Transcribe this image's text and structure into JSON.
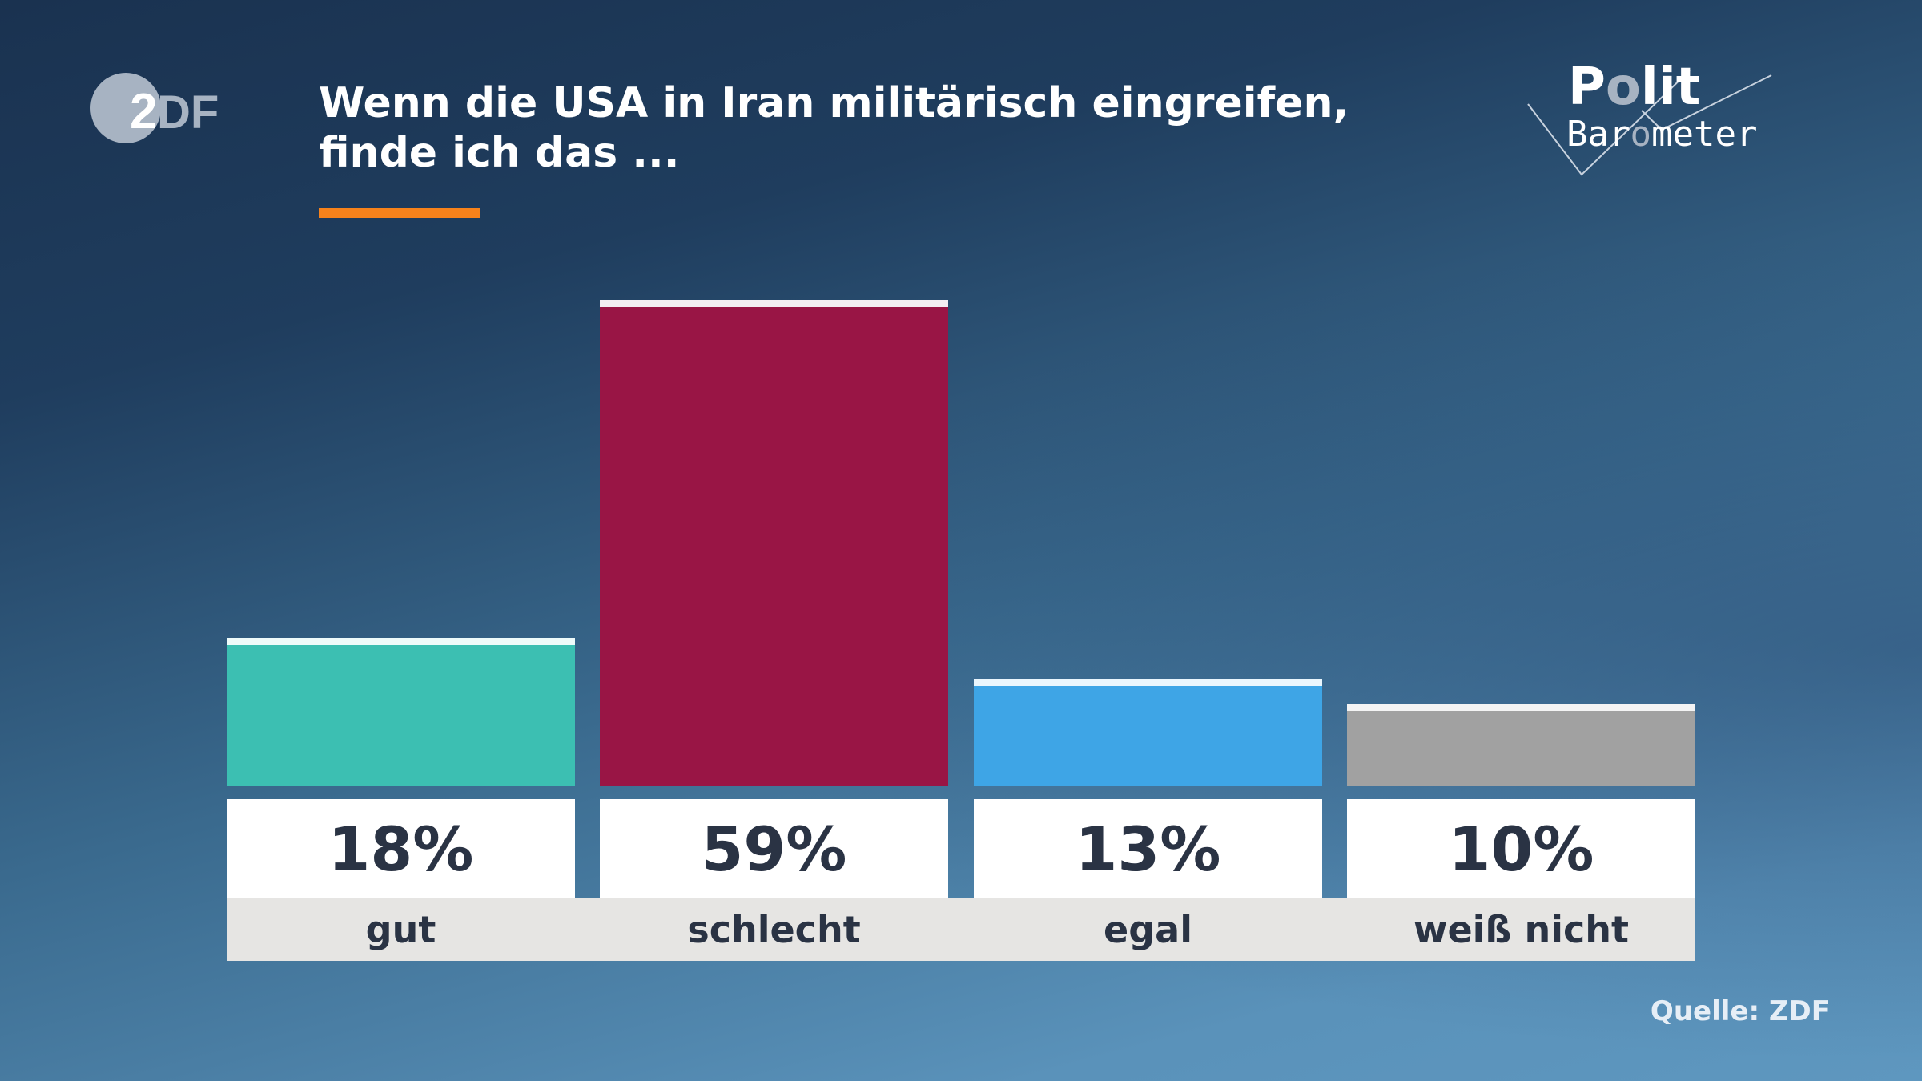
{
  "header": {
    "title": "Wenn die USA in Iran militärisch eingreifen, finde ich das ...",
    "logo_left": "ZDF",
    "logo_right": "Polit Barometer"
  },
  "colors": {
    "accent": "#f7821b",
    "gut": "#3cbfb2",
    "schlecht": "#991545",
    "egal": "#3ea5e6",
    "weiss_nicht": "#a1a1a1"
  },
  "chart_data": {
    "type": "bar",
    "title": "Wenn die USA in Iran militärisch eingreifen, finde ich das ...",
    "categories": [
      "gut",
      "schlecht",
      "egal",
      "weiß nicht"
    ],
    "values": [
      18,
      59,
      13,
      10
    ],
    "value_labels": [
      "18%",
      "59%",
      "13%",
      "10%"
    ],
    "unit": "%",
    "ylim": [
      0,
      59
    ],
    "grid": false,
    "colors": [
      "#3cbfb2",
      "#991545",
      "#3ea5e6",
      "#a1a1a1"
    ],
    "cap_colors": [
      "#eefbfa",
      "#f3eef2",
      "#eaf6fd",
      "#f4f4f4"
    ]
  },
  "footer": {
    "source": "Quelle: ZDF"
  }
}
